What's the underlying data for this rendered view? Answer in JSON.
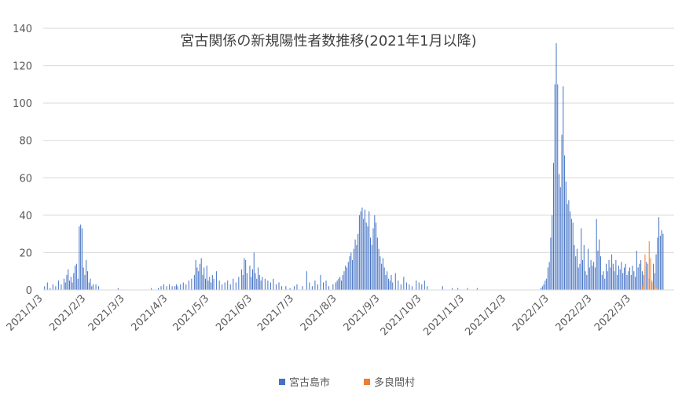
{
  "chart_data": {
    "type": "bar",
    "title": "宮古関係の新規陽性者数推移(2021年1月以降)",
    "xlabel": "",
    "ylabel": "",
    "ylim": [
      0,
      140
    ],
    "yticks": [
      "0",
      "20",
      "40",
      "60",
      "80",
      "100",
      "120",
      "140"
    ],
    "grid": "horizontal",
    "legend_position": "bottom",
    "x_start_date": "2021-01-03",
    "x_end_date": "2022-04-03",
    "x_tick_labels": [
      "2021/1/3",
      "2021/2/3",
      "2021/3/3",
      "2021/4/3",
      "2021/5/3",
      "2021/6/3",
      "2021/7/3",
      "2021/8/3",
      "2021/9/3",
      "2021/10/3",
      "2021/11/3",
      "2021/12/3",
      "2022/1/3",
      "2022/2/3",
      "2022/3/3"
    ],
    "x_tick_dates": [
      "2021-01-03",
      "2021-02-03",
      "2021-03-03",
      "2021-04-03",
      "2021-05-03",
      "2021-06-03",
      "2021-07-03",
      "2021-08-03",
      "2021-09-03",
      "2021-10-03",
      "2021-11-03",
      "2021-12-03",
      "2022-01-03",
      "2022-02-03",
      "2022-03-03"
    ],
    "series": [
      {
        "name": "宮古島市",
        "color": "#4472C4",
        "points": [
          [
            "2021-01-04",
            2
          ],
          [
            "2021-01-06",
            4
          ],
          [
            "2021-01-08",
            1
          ],
          [
            "2021-01-10",
            3
          ],
          [
            "2021-01-12",
            2
          ],
          [
            "2021-01-14",
            5
          ],
          [
            "2021-01-16",
            3
          ],
          [
            "2021-01-18",
            6
          ],
          [
            "2021-01-19",
            4
          ],
          [
            "2021-01-20",
            8
          ],
          [
            "2021-01-21",
            11
          ],
          [
            "2021-01-22",
            5
          ],
          [
            "2021-01-23",
            7
          ],
          [
            "2021-01-24",
            4
          ],
          [
            "2021-01-25",
            9
          ],
          [
            "2021-01-26",
            13
          ],
          [
            "2021-01-27",
            14
          ],
          [
            "2021-01-28",
            6
          ],
          [
            "2021-01-29",
            34
          ],
          [
            "2021-01-30",
            35
          ],
          [
            "2021-01-31",
            33
          ],
          [
            "2021-02-01",
            12
          ],
          [
            "2021-02-02",
            8
          ],
          [
            "2021-02-03",
            16
          ],
          [
            "2021-02-04",
            10
          ],
          [
            "2021-02-05",
            4
          ],
          [
            "2021-02-06",
            6
          ],
          [
            "2021-02-07",
            2
          ],
          [
            "2021-02-08",
            3
          ],
          [
            "2021-02-10",
            3
          ],
          [
            "2021-02-12",
            2
          ],
          [
            "2021-02-26",
            1
          ],
          [
            "2021-03-22",
            1
          ],
          [
            "2021-03-27",
            1
          ],
          [
            "2021-03-29",
            2
          ],
          [
            "2021-03-31",
            3
          ],
          [
            "2021-04-02",
            2
          ],
          [
            "2021-04-04",
            3
          ],
          [
            "2021-04-06",
            2
          ],
          [
            "2021-04-08",
            2
          ],
          [
            "2021-04-09",
            3
          ],
          [
            "2021-04-10",
            2
          ],
          [
            "2021-04-12",
            3
          ],
          [
            "2021-04-14",
            4
          ],
          [
            "2021-04-16",
            3
          ],
          [
            "2021-04-18",
            5
          ],
          [
            "2021-04-20",
            6
          ],
          [
            "2021-04-22",
            8
          ],
          [
            "2021-04-23",
            16
          ],
          [
            "2021-04-24",
            12
          ],
          [
            "2021-04-25",
            10
          ],
          [
            "2021-04-26",
            14
          ],
          [
            "2021-04-27",
            17
          ],
          [
            "2021-04-28",
            8
          ],
          [
            "2021-04-29",
            12
          ],
          [
            "2021-04-30",
            6
          ],
          [
            "2021-05-01",
            13
          ],
          [
            "2021-05-02",
            5
          ],
          [
            "2021-05-03",
            7
          ],
          [
            "2021-05-04",
            4
          ],
          [
            "2021-05-05",
            8
          ],
          [
            "2021-05-06",
            6
          ],
          [
            "2021-05-08",
            10
          ],
          [
            "2021-05-10",
            5
          ],
          [
            "2021-05-12",
            3
          ],
          [
            "2021-05-14",
            4
          ],
          [
            "2021-05-16",
            5
          ],
          [
            "2021-05-18",
            3
          ],
          [
            "2021-05-20",
            6
          ],
          [
            "2021-05-22",
            4
          ],
          [
            "2021-05-24",
            7
          ],
          [
            "2021-05-26",
            11
          ],
          [
            "2021-05-27",
            8
          ],
          [
            "2021-05-28",
            17
          ],
          [
            "2021-05-29",
            16
          ],
          [
            "2021-05-30",
            9
          ],
          [
            "2021-06-01",
            13
          ],
          [
            "2021-06-02",
            7
          ],
          [
            "2021-06-03",
            11
          ],
          [
            "2021-06-04",
            20
          ],
          [
            "2021-06-05",
            9
          ],
          [
            "2021-06-06",
            6
          ],
          [
            "2021-06-07",
            12
          ],
          [
            "2021-06-08",
            8
          ],
          [
            "2021-06-09",
            5
          ],
          [
            "2021-06-10",
            7
          ],
          [
            "2021-06-12",
            6
          ],
          [
            "2021-06-14",
            5
          ],
          [
            "2021-06-16",
            4
          ],
          [
            "2021-06-18",
            6
          ],
          [
            "2021-06-20",
            3
          ],
          [
            "2021-06-22",
            4
          ],
          [
            "2021-06-24",
            2
          ],
          [
            "2021-06-27",
            2
          ],
          [
            "2021-06-30",
            1
          ],
          [
            "2021-07-03",
            2
          ],
          [
            "2021-07-05",
            3
          ],
          [
            "2021-07-09",
            2
          ],
          [
            "2021-07-12",
            10
          ],
          [
            "2021-07-14",
            4
          ],
          [
            "2021-07-16",
            2
          ],
          [
            "2021-07-18",
            5
          ],
          [
            "2021-07-20",
            3
          ],
          [
            "2021-07-22",
            8
          ],
          [
            "2021-07-24",
            4
          ],
          [
            "2021-07-26",
            5
          ],
          [
            "2021-07-28",
            2
          ],
          [
            "2021-07-31",
            3
          ],
          [
            "2021-08-02",
            4
          ],
          [
            "2021-08-03",
            5
          ],
          [
            "2021-08-04",
            6
          ],
          [
            "2021-08-05",
            7
          ],
          [
            "2021-08-06",
            5
          ],
          [
            "2021-08-07",
            8
          ],
          [
            "2021-08-08",
            10
          ],
          [
            "2021-08-09",
            13
          ],
          [
            "2021-08-10",
            12
          ],
          [
            "2021-08-11",
            15
          ],
          [
            "2021-08-12",
            18
          ],
          [
            "2021-08-13",
            20
          ],
          [
            "2021-08-14",
            16
          ],
          [
            "2021-08-15",
            22
          ],
          [
            "2021-08-16",
            27
          ],
          [
            "2021-08-17",
            24
          ],
          [
            "2021-08-18",
            30
          ],
          [
            "2021-08-19",
            40
          ],
          [
            "2021-08-20",
            42
          ],
          [
            "2021-08-21",
            44
          ],
          [
            "2021-08-22",
            38
          ],
          [
            "2021-08-23",
            43
          ],
          [
            "2021-08-24",
            36
          ],
          [
            "2021-08-25",
            34
          ],
          [
            "2021-08-26",
            42
          ],
          [
            "2021-08-27",
            28
          ],
          [
            "2021-08-28",
            24
          ],
          [
            "2021-08-29",
            33
          ],
          [
            "2021-08-30",
            40
          ],
          [
            "2021-08-31",
            36
          ],
          [
            "2021-09-01",
            28
          ],
          [
            "2021-09-02",
            22
          ],
          [
            "2021-09-03",
            18
          ],
          [
            "2021-09-04",
            14
          ],
          [
            "2021-09-05",
            17
          ],
          [
            "2021-09-06",
            12
          ],
          [
            "2021-09-07",
            8
          ],
          [
            "2021-09-08",
            10
          ],
          [
            "2021-09-09",
            6
          ],
          [
            "2021-09-10",
            5
          ],
          [
            "2021-09-11",
            8
          ],
          [
            "2021-09-12",
            4
          ],
          [
            "2021-09-14",
            9
          ],
          [
            "2021-09-16",
            5
          ],
          [
            "2021-09-18",
            3
          ],
          [
            "2021-09-20",
            7
          ],
          [
            "2021-09-22",
            4
          ],
          [
            "2021-09-24",
            3
          ],
          [
            "2021-09-26",
            2
          ],
          [
            "2021-09-29",
            5
          ],
          [
            "2021-10-01",
            4
          ],
          [
            "2021-10-03",
            3
          ],
          [
            "2021-10-05",
            5
          ],
          [
            "2021-10-07",
            2
          ],
          [
            "2021-10-18",
            2
          ],
          [
            "2021-10-25",
            1
          ],
          [
            "2021-10-29",
            1
          ],
          [
            "2021-11-05",
            1
          ],
          [
            "2021-11-12",
            1
          ],
          [
            "2021-12-28",
            1
          ],
          [
            "2021-12-29",
            2
          ],
          [
            "2021-12-30",
            3
          ],
          [
            "2021-12-31",
            5
          ],
          [
            "2022-01-01",
            6
          ],
          [
            "2022-01-02",
            12
          ],
          [
            "2022-01-03",
            15
          ],
          [
            "2022-01-04",
            28
          ],
          [
            "2022-01-05",
            40
          ],
          [
            "2022-01-06",
            68
          ],
          [
            "2022-01-07",
            110
          ],
          [
            "2022-01-08",
            132
          ],
          [
            "2022-01-09",
            110
          ],
          [
            "2022-01-10",
            62
          ],
          [
            "2022-01-11",
            55
          ],
          [
            "2022-01-12",
            83
          ],
          [
            "2022-01-13",
            109
          ],
          [
            "2022-01-14",
            72
          ],
          [
            "2022-01-15",
            58
          ],
          [
            "2022-01-16",
            46
          ],
          [
            "2022-01-17",
            48
          ],
          [
            "2022-01-18",
            42
          ],
          [
            "2022-01-19",
            38
          ],
          [
            "2022-01-20",
            36
          ],
          [
            "2022-01-21",
            24
          ],
          [
            "2022-01-22",
            18
          ],
          [
            "2022-01-23",
            22
          ],
          [
            "2022-01-24",
            12
          ],
          [
            "2022-01-25",
            14
          ],
          [
            "2022-01-26",
            33
          ],
          [
            "2022-01-27",
            16
          ],
          [
            "2022-01-28",
            24
          ],
          [
            "2022-01-29",
            10
          ],
          [
            "2022-01-30",
            8
          ],
          [
            "2022-01-31",
            22
          ],
          [
            "2022-02-01",
            12
          ],
          [
            "2022-02-02",
            16
          ],
          [
            "2022-02-03",
            13
          ],
          [
            "2022-02-04",
            15
          ],
          [
            "2022-02-05",
            12
          ],
          [
            "2022-02-06",
            38
          ],
          [
            "2022-02-07",
            21
          ],
          [
            "2022-02-08",
            27
          ],
          [
            "2022-02-09",
            18
          ],
          [
            "2022-02-10",
            8
          ],
          [
            "2022-02-11",
            10
          ],
          [
            "2022-02-12",
            6
          ],
          [
            "2022-02-13",
            14
          ],
          [
            "2022-02-14",
            10
          ],
          [
            "2022-02-15",
            16
          ],
          [
            "2022-02-16",
            12
          ],
          [
            "2022-02-17",
            19
          ],
          [
            "2022-02-18",
            14
          ],
          [
            "2022-02-19",
            10
          ],
          [
            "2022-02-20",
            16
          ],
          [
            "2022-02-21",
            8
          ],
          [
            "2022-02-22",
            13
          ],
          [
            "2022-02-23",
            11
          ],
          [
            "2022-02-24",
            15
          ],
          [
            "2022-02-25",
            9
          ],
          [
            "2022-02-26",
            12
          ],
          [
            "2022-02-27",
            14
          ],
          [
            "2022-02-28",
            8
          ],
          [
            "2022-03-01",
            10
          ],
          [
            "2022-03-02",
            12
          ],
          [
            "2022-03-03",
            8
          ],
          [
            "2022-03-04",
            13
          ],
          [
            "2022-03-05",
            10
          ],
          [
            "2022-03-06",
            7
          ],
          [
            "2022-03-07",
            21
          ],
          [
            "2022-03-08",
            12
          ],
          [
            "2022-03-09",
            14
          ],
          [
            "2022-03-10",
            16
          ],
          [
            "2022-03-11",
            10
          ],
          [
            "2022-03-12",
            8
          ],
          [
            "2022-03-13",
            12
          ],
          [
            "2022-03-14",
            15
          ],
          [
            "2022-03-15",
            12
          ],
          [
            "2022-03-16",
            6
          ],
          [
            "2022-03-17",
            10
          ],
          [
            "2022-03-18",
            4
          ],
          [
            "2022-03-19",
            14
          ],
          [
            "2022-03-20",
            9
          ],
          [
            "2022-03-21",
            19
          ],
          [
            "2022-03-22",
            28
          ],
          [
            "2022-03-23",
            39
          ],
          [
            "2022-03-24",
            29
          ],
          [
            "2022-03-25",
            32
          ],
          [
            "2022-03-26",
            30
          ]
        ]
      },
      {
        "name": "多良間村",
        "color": "#ED7D31",
        "points": [
          [
            "2022-03-11",
            2
          ],
          [
            "2022-03-13",
            19
          ],
          [
            "2022-03-15",
            14
          ],
          [
            "2022-03-16",
            26
          ],
          [
            "2022-03-17",
            17
          ],
          [
            "2022-03-18",
            5
          ],
          [
            "2022-03-20",
            2
          ],
          [
            "2022-03-21",
            1
          ],
          [
            "2022-03-22",
            2
          ]
        ]
      }
    ]
  }
}
